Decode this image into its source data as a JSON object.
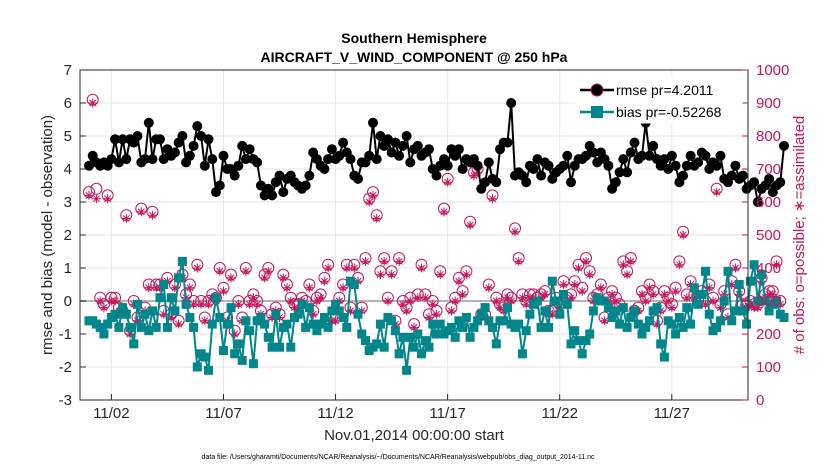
{
  "chart_data": {
    "type": "line",
    "title_line1": "Southern Hemisphere",
    "title_line2": "AIRCRAFT_V_WIND_COMPONENT @ 250 hPa",
    "xlabel": "Nov.01,2014 00:00:00 start",
    "ylabel_left": "rmse and bias (model - observation)",
    "ylabel_right": "# of obs: o=possible; ∗=assimilated",
    "footer": "data file: /Users/gharamti/Documents/NCAR/Reanalysis/~/Documents/NCAR/Reanalysis/webpub/obs_diag_output_2014-11.nc",
    "x_range": [
      0.6,
      30.4
    ],
    "ylim_left": [
      -3,
      7
    ],
    "ylim_right": [
      0,
      1000
    ],
    "x_ticks": [
      {
        "value": 2,
        "label": "11/02"
      },
      {
        "value": 7,
        "label": "11/07"
      },
      {
        "value": 12,
        "label": "11/12"
      },
      {
        "value": 17,
        "label": "11/17"
      },
      {
        "value": 22,
        "label": "11/22"
      },
      {
        "value": 27,
        "label": "11/27"
      }
    ],
    "y_ticks_left": [
      "-3",
      "-2",
      "-1",
      "0",
      "1",
      "2",
      "3",
      "4",
      "5",
      "6",
      "7"
    ],
    "y_ticks_right": [
      "0",
      "100",
      "200",
      "300",
      "400",
      "500",
      "600",
      "700",
      "800",
      "900",
      "1000"
    ],
    "colors": {
      "rmse": "#000000",
      "bias": "#00868b",
      "obs": "#c4145c",
      "zero_line": "#b4b4b4",
      "grid": "#e6e6e6"
    },
    "series": [
      {
        "name": "rmse",
        "legend": "rmse pr=4.2011",
        "axis": "left",
        "values": [
          4.1,
          4.4,
          4.2,
          4.1,
          4.2,
          4.1,
          4.3,
          4.9,
          4.2,
          4.9,
          4.3,
          4.9,
          4.8,
          5.0,
          4.2,
          4.3,
          5.4,
          4.3,
          4.9,
          4.9,
          4.3,
          4.6,
          4.4,
          4.5,
          4.8,
          5.0,
          4.2,
          4.4,
          4.7,
          5.3,
          5.0,
          4.1,
          4.9,
          4.3,
          3.3,
          3.5,
          4.4,
          4.0,
          4.0,
          3.8,
          4.1,
          4.7,
          4.3,
          4.6,
          4.3,
          4.2,
          3.5,
          3.2,
          3.4,
          3.2,
          3.6,
          3.8,
          3.3,
          3.7,
          3.8,
          3.6,
          3.5,
          3.4,
          3.5,
          3.8,
          4.5,
          4.3,
          4.1,
          4.0,
          4.3,
          4.6,
          4.3,
          4.4,
          4.8,
          4.5,
          4.3,
          3.8,
          3.7,
          4.2,
          4.2,
          4.4,
          5.4,
          4.3,
          5.0,
          4.7,
          4.9,
          4.5,
          4.8,
          4.4,
          4.7,
          5.0,
          4.2,
          4.6,
          4.7,
          4.4,
          4.5,
          4.6,
          4.0,
          3.8,
          4.1,
          4.3,
          4.1,
          4.6,
          4.4,
          4.6,
          4.0,
          4.3,
          4.2,
          4.3,
          4.1,
          3.4,
          3.6,
          4.2,
          3.7,
          3.6,
          4.6,
          4.8,
          4.8,
          6.0,
          3.8,
          3.9,
          3.8,
          3.6,
          4.1,
          4.0,
          4.3,
          3.8,
          4.2,
          4.1,
          3.7,
          3.9,
          4.0,
          4.1,
          4.4,
          3.6,
          4.1,
          4.3,
          4.3,
          4.4,
          4.7,
          4.5,
          4.2,
          4.5,
          4.3,
          4.1,
          3.4,
          3.6,
          3.9,
          4.3,
          3.9,
          4.5,
          4.8,
          4.3,
          4.4,
          5.4,
          4.4,
          4.7,
          4.3,
          4.1,
          4.3,
          4.0,
          4.4,
          4.1,
          3.6,
          3.8,
          4.1,
          4.4,
          4.1,
          4.2,
          4.5,
          4.4,
          4.0,
          4.2,
          4.1,
          4.4,
          3.7,
          3.6,
          3.8,
          4.1,
          3.7,
          3.8,
          3.4,
          3.5,
          3.6,
          3.0,
          3.4,
          3.5,
          3.7,
          3.3,
          3.5,
          3.6,
          4.7
        ]
      },
      {
        "name": "bias",
        "legend": "bias pr=-0.52268",
        "axis": "left",
        "values": [
          -0.6,
          -0.6,
          -0.7,
          -0.8,
          -1.0,
          -0.7,
          -0.5,
          -0.4,
          -0.8,
          -0.2,
          -0.4,
          -0.8,
          -1.3,
          -0.1,
          -0.8,
          -0.4,
          -0.9,
          -0.3,
          -0.8,
          0.1,
          0.5,
          -0.8,
          0.1,
          -0.3,
          0.7,
          1.2,
          -0.1,
          -0.5,
          -0.8,
          -2.0,
          -1.6,
          -1.7,
          -2.1,
          -0.7,
          0.1,
          -0.5,
          -1.5,
          -0.7,
          -0.2,
          -1.6,
          -1.3,
          -1.8,
          -0.6,
          -0.9,
          -1.9,
          -0.6,
          -0.5,
          -0.7,
          -1.1,
          -1.4,
          -0.4,
          -1.4,
          -0.8,
          -0.7,
          -1.4,
          -0.5,
          -0.4,
          -0.1,
          -0.8,
          -0.2,
          -0.7,
          -0.9,
          -0.7,
          -0.5,
          -0.8,
          -0.3,
          -0.1,
          -0.3,
          -0.5,
          -0.8,
          0.6,
          0.5,
          -0.4,
          -1.0,
          -1.2,
          -1.5,
          -1.4,
          -1.3,
          -0.7,
          -1.4,
          -0.5,
          -0.6,
          -0.9,
          -1.6,
          -1.1,
          -2.1,
          -1.1,
          -1.4,
          -1.0,
          -1.6,
          -1.2,
          -1.4,
          -0.7,
          -1.0,
          -0.7,
          -1.0,
          -0.9,
          -0.8,
          -1.1,
          -0.6,
          -0.8,
          -0.5,
          -1.1,
          -0.8,
          -0.6,
          -0.4,
          -0.2,
          -0.6,
          -0.8,
          -1.3,
          -0.6,
          -0.6,
          -0.2,
          -0.7,
          -0.8,
          -0.7,
          -1.6,
          -0.9,
          -0.4,
          -0.1,
          0.0,
          -0.8,
          -0.3,
          -0.8,
          0.6,
          0.0,
          -0.4,
          0.2,
          -0.1,
          -1.3,
          -0.9,
          -1.2,
          -1.6,
          -1.2,
          -1.0,
          -0.3,
          0.1,
          0.0,
          0.0,
          -0.2,
          -0.5,
          -0.3,
          -0.7,
          -0.2,
          -0.8,
          -0.5,
          -0.3,
          -0.7,
          -1.0,
          -0.8,
          -0.6,
          -0.3,
          -0.2,
          -1.3,
          -1.7,
          -0.6,
          -0.7,
          -1.0,
          -0.5,
          -0.8,
          -0.2,
          -0.7,
          0.4,
          -0.1,
          0.2,
          0.9,
          -0.4,
          -0.9,
          -0.8,
          -0.6,
          0.0,
          0.9,
          -0.6,
          -0.3,
          0.5,
          -0.3,
          -0.7,
          0.6,
          1.1,
          0.0,
          0.8,
          0.0,
          -0.3,
          -0.1,
          0.0,
          -0.4,
          -0.5
        ]
      },
      {
        "name": "obs_possible",
        "axis": "right",
        "values": [
          630,
          910,
          640,
          310,
          290,
          620,
          310,
          310,
          280,
          270,
          560,
          210,
          300,
          250,
          580,
          280,
          350,
          570,
          350,
          350,
          270,
          370,
          260,
          350,
          240,
          380,
          320,
          350,
          300,
          410,
          300,
          250,
          300,
          320,
          310,
          400,
          340,
          250,
          380,
          210,
          300,
          250,
          400,
          300,
          320,
          300,
          270,
          380,
          400,
          260,
          280,
          260,
          380,
          350,
          310,
          290,
          290,
          310,
          300,
          350,
          270,
          310,
          320,
          370,
          410,
          250,
          250,
          310,
          350,
          410,
          280,
          410,
          370,
          280,
          430,
          610,
          630,
          560,
          390,
          430,
          310,
          390,
          240,
          430,
          300,
          280,
          310,
          230,
          320,
          410,
          320,
          260,
          300,
          270,
          390,
          580,
          670,
          280,
          310,
          370,
          330,
          390,
          540,
          690,
          700,
          260,
          260,
          350,
          620,
          310,
          290,
          280,
          320,
          310,
          520,
          430,
          320,
          300,
          320,
          320,
          310,
          320,
          330,
          270,
          270,
          310,
          290,
          360,
          310,
          320,
          360,
          410,
          340,
          430,
          390,
          310,
          320,
          350,
          250,
          310,
          330,
          310,
          290,
          420,
          390,
          430,
          270,
          280,
          330,
          310,
          350,
          330,
          240,
          280,
          330,
          310,
          290,
          340,
          420,
          510,
          320,
          360,
          320,
          300,
          330,
          300,
          350,
          310,
          640,
          290,
          330,
          260,
          360,
          410,
          330,
          290,
          290,
          300,
          290,
          290,
          370,
          320,
          330,
          330,
          420,
          300
        ]
      },
      {
        "name": "obs_assimilated",
        "axis": "right",
        "values": [
          620,
          900,
          610,
          300,
          280,
          610,
          300,
          300,
          270,
          260,
          550,
          200,
          290,
          240,
          570,
          270,
          340,
          560,
          340,
          340,
          260,
          360,
          250,
          340,
          230,
          370,
          310,
          340,
          290,
          400,
          290,
          240,
          290,
          310,
          300,
          390,
          330,
          240,
          370,
          200,
          290,
          240,
          390,
          290,
          310,
          290,
          260,
          370,
          390,
          250,
          270,
          250,
          370,
          340,
          300,
          280,
          280,
          300,
          290,
          340,
          260,
          300,
          310,
          360,
          400,
          240,
          240,
          300,
          340,
          400,
          270,
          400,
          360,
          270,
          420,
          600,
          620,
          550,
          380,
          420,
          300,
          380,
          230,
          420,
          290,
          270,
          300,
          220,
          310,
          400,
          310,
          250,
          290,
          260,
          380,
          570,
          660,
          270,
          300,
          360,
          320,
          380,
          530,
          680,
          690,
          250,
          250,
          340,
          610,
          300,
          280,
          270,
          310,
          300,
          510,
          420,
          310,
          290,
          310,
          310,
          300,
          310,
          320,
          260,
          260,
          300,
          280,
          350,
          300,
          310,
          350,
          400,
          330,
          420,
          380,
          300,
          310,
          340,
          240,
          300,
          320,
          300,
          280,
          410,
          380,
          420,
          260,
          270,
          320,
          300,
          340,
          320,
          230,
          270,
          320,
          300,
          280,
          330,
          410,
          500,
          310,
          350,
          310,
          290,
          320,
          290,
          340,
          300,
          630,
          280,
          320,
          250,
          350,
          400,
          320,
          280,
          280,
          290,
          280,
          280,
          360,
          310,
          320,
          320,
          410,
          290
        ]
      }
    ]
  }
}
